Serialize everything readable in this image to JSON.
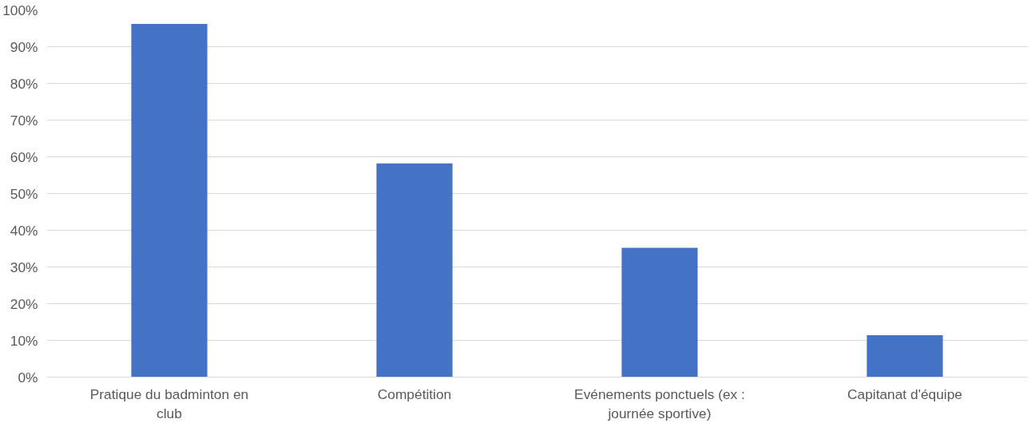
{
  "chart_data": {
    "type": "bar",
    "categories": [
      "Pratique du badminton en club",
      "Compétition",
      "Evénements ponctuels (ex : journée sportive)",
      "Capitanat d'équipe"
    ],
    "values": [
      96.2,
      58.2,
      35.2,
      11.4
    ],
    "color": "#4472c4",
    "ylim": [
      0,
      100
    ],
    "yticks": [
      {
        "value": 0,
        "label": "0%"
      },
      {
        "value": 10,
        "label": "10%"
      },
      {
        "value": 20,
        "label": "20%"
      },
      {
        "value": 30,
        "label": "30%"
      },
      {
        "value": 40,
        "label": "40%"
      },
      {
        "value": 50,
        "label": "50%"
      },
      {
        "value": 60,
        "label": "60%"
      },
      {
        "value": 70,
        "label": "70%"
      },
      {
        "value": 80,
        "label": "80%"
      },
      {
        "value": 90,
        "label": "90%"
      },
      {
        "value": 100,
        "label": "100%"
      }
    ],
    "grid": "y"
  }
}
